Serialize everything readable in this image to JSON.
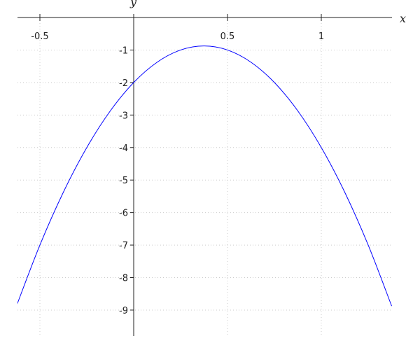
{
  "chart_data": {
    "type": "line",
    "title": "",
    "xlabel": "x",
    "ylabel": "y",
    "xlim": [
      -0.62,
      1.375
    ],
    "ylim": [
      -9.8,
      0
    ],
    "grid": true,
    "x_ticks": [
      {
        "value": -0.5,
        "label": "-0.5"
      },
      {
        "value": 0.5,
        "label": "0.5"
      },
      {
        "value": 1,
        "label": "1"
      }
    ],
    "y_ticks": [
      {
        "value": -1,
        "label": "-1"
      },
      {
        "value": -2,
        "label": "-2"
      },
      {
        "value": -3,
        "label": "-3"
      },
      {
        "value": -4,
        "label": "-4"
      },
      {
        "value": -5,
        "label": "-5"
      },
      {
        "value": -6,
        "label": "-6"
      },
      {
        "value": -7,
        "label": "-7"
      },
      {
        "value": -8,
        "label": "-8"
      },
      {
        "value": -9,
        "label": "-9"
      }
    ],
    "series": [
      {
        "color": "#0000ff",
        "x": [
          -0.625,
          -0.5,
          -0.375,
          -0.25,
          -0.125,
          0,
          0.125,
          0.25,
          0.375,
          0.5,
          0.625,
          0.75,
          0.875,
          1,
          1.125,
          1.25,
          1.375
        ],
        "y": [
          -8.875,
          -7,
          -5.375,
          -4,
          -2.875,
          -2,
          -1.375,
          -1,
          -0.875,
          -1,
          -1.375,
          -2,
          -2.875,
          -4,
          -5.375,
          -7,
          -8.875
        ]
      }
    ]
  }
}
